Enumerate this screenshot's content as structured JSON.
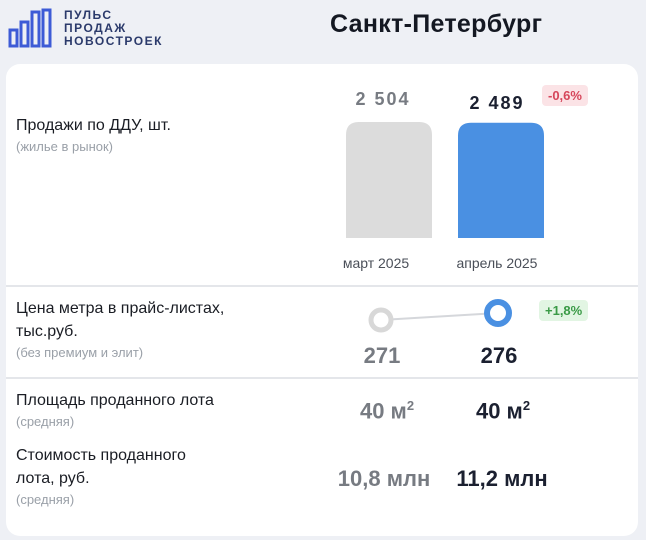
{
  "brand": {
    "line1": "ПУЛЬС",
    "line2": "ПРОДАЖ",
    "line3": "НОВОСТРОЕК",
    "color": "#2b3a6b"
  },
  "city": "Санкт-Петербург",
  "sales": {
    "label": "Продажи по ДДУ, шт.",
    "sub": "(жилье в рынок)",
    "change": "-0,6%",
    "prev_value_label": "2 504",
    "curr_value_label": "2 489"
  },
  "price": {
    "label_line1": "Цена метра в прайс-листах,",
    "label_line2": "тыс.руб.",
    "sub": "(без премиум и элит)",
    "change": "+1,8%",
    "prev_value": "271",
    "curr_value": "276"
  },
  "area": {
    "label": "Площадь проданного лота",
    "sub": "(средняя)",
    "prev_value": "40 м",
    "curr_value": "40 м",
    "sup": "2"
  },
  "cost": {
    "label_line1": "Стоимость проданного",
    "label_line2": "лота, руб.",
    "sub": "(средняя)",
    "prev_value": "10,8 млн",
    "curr_value": "11,2 млн"
  },
  "colors": {
    "accent": "#4a90e2",
    "grey_bar": "#dcdcdc",
    "negative": "#d6455a",
    "positive": "#3a9a46"
  },
  "chart_data": [
    {
      "type": "bar",
      "categories": [
        "март 2025",
        "апрель 2025"
      ],
      "values": [
        2504,
        2489
      ],
      "ylim": [
        0,
        2504
      ],
      "colors": [
        "#dcdcdc",
        "#4a90e2"
      ]
    },
    {
      "type": "line",
      "categories": [
        "март 2025",
        "апрель 2025"
      ],
      "values": [
        271,
        276
      ]
    }
  ]
}
